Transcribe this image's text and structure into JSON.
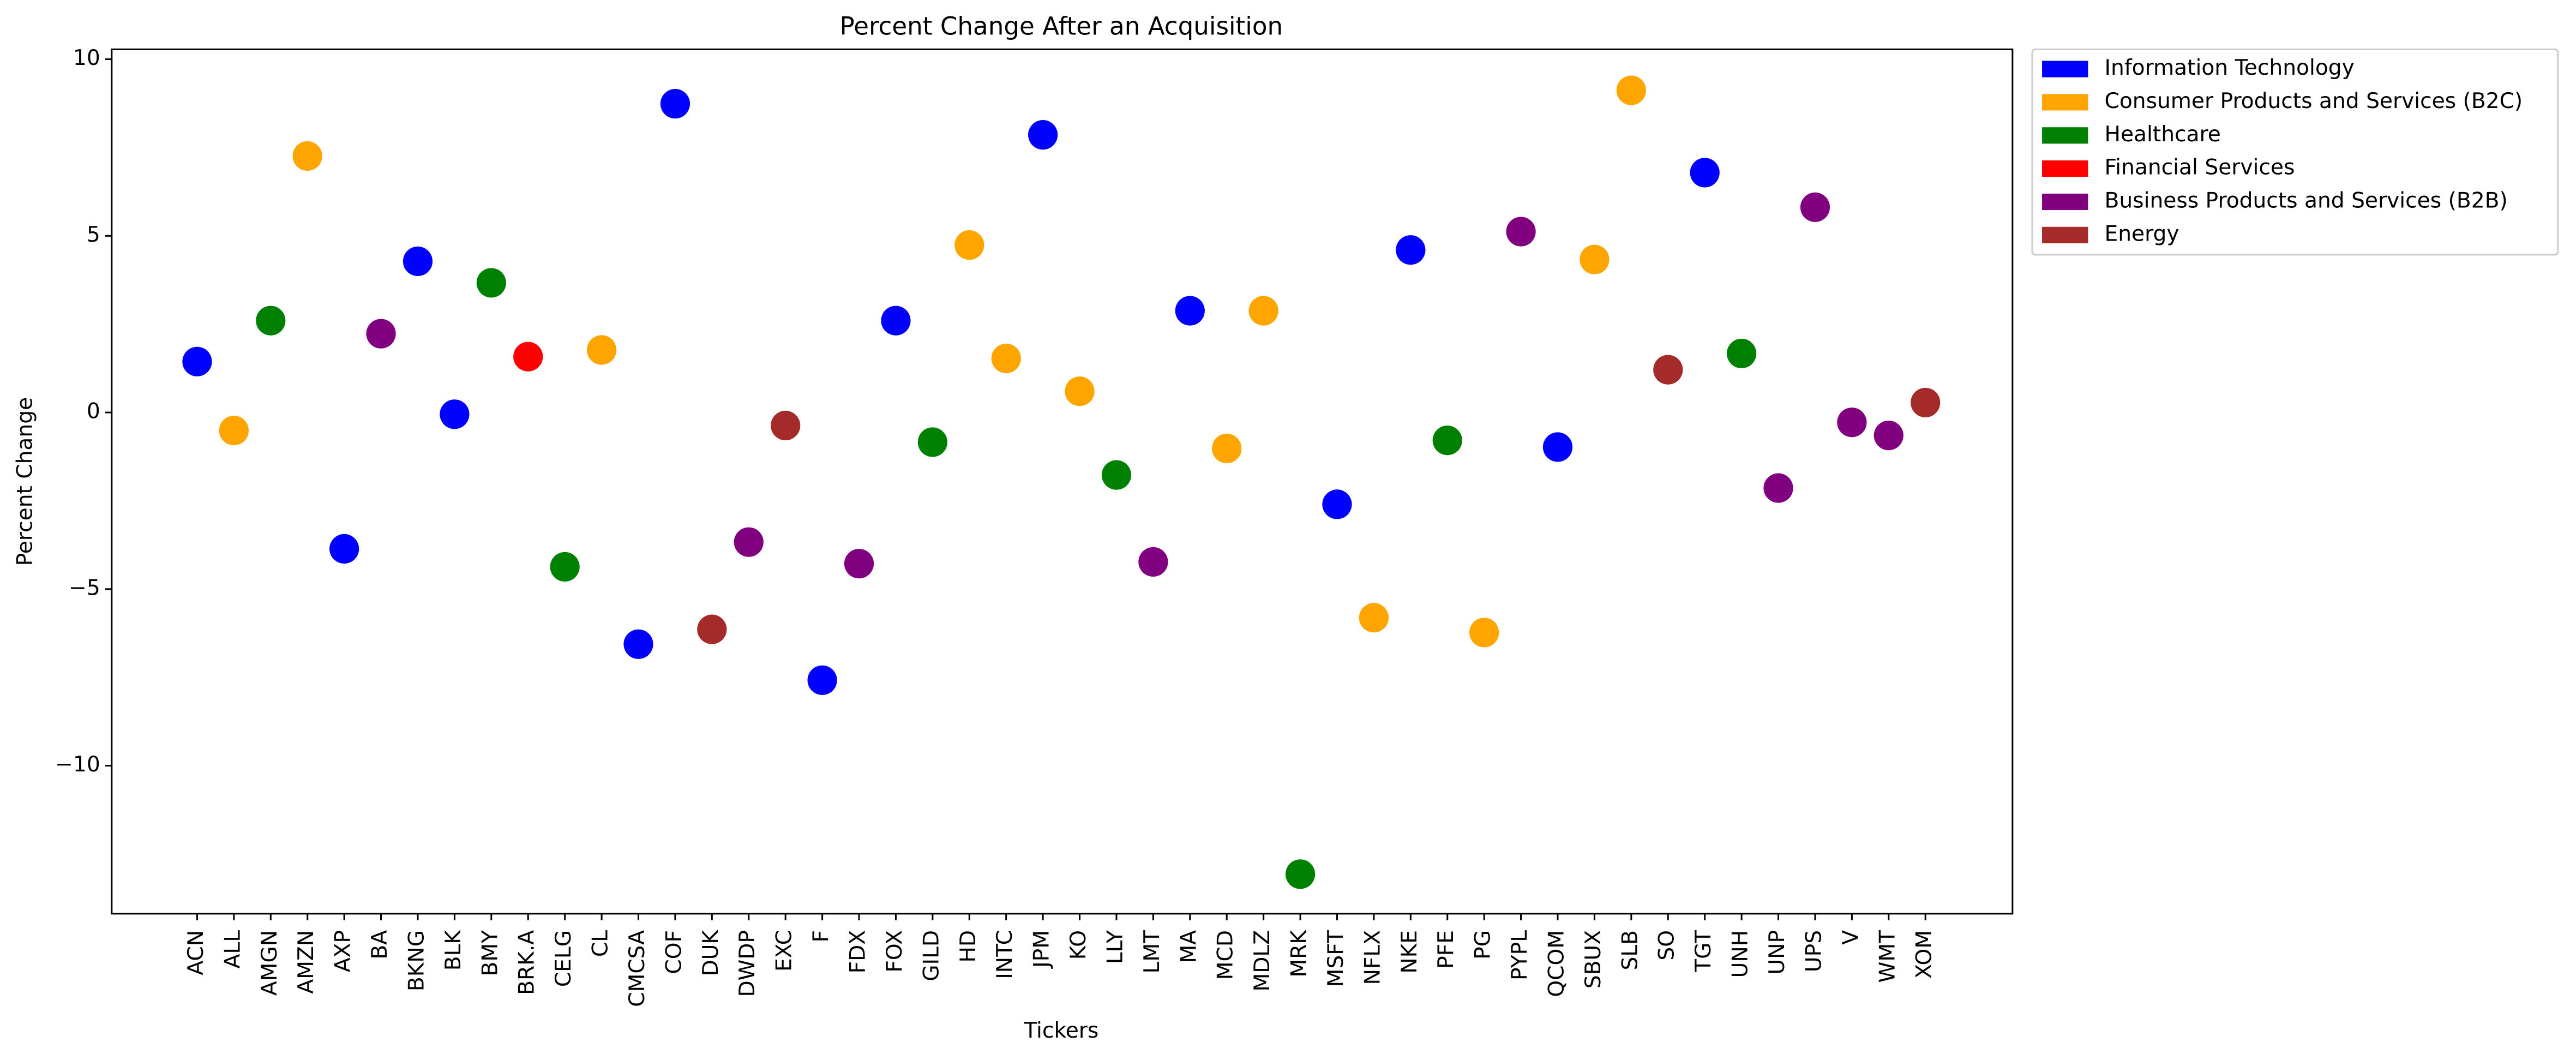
{
  "chart_data": {
    "type": "scatter",
    "title": "Percent Change After an Acquisition",
    "x_label": "Tickers",
    "y_label": "Percent Change",
    "categories": [
      "ACN",
      "ALL",
      "AMGN",
      "AMZN",
      "AXP",
      "BA",
      "BKNG",
      "BLK",
      "BMY",
      "BRK.A",
      "CELG",
      "CL",
      "CMCSA",
      "COF",
      "DUK",
      "DWDP",
      "EXC",
      "F",
      "FDX",
      "FOX",
      "GILD",
      "HD",
      "INTC",
      "JPM",
      "KO",
      "LLY",
      "LMT",
      "MA",
      "MCD",
      "MDLZ",
      "MRK",
      "MSFT",
      "NFLX",
      "NKE",
      "PFE",
      "PG",
      "PYPL",
      "QCOM",
      "SBUX",
      "SLB",
      "SO",
      "TGT",
      "UNH",
      "UNP",
      "UPS",
      "V",
      "WMT",
      "XOM"
    ],
    "series": [
      {
        "name": "Information Technology",
        "color": "#0000ff",
        "values": [
          1.44,
          null,
          null,
          null,
          -3.86,
          null,
          4.28,
          -0.05,
          null,
          null,
          null,
          null,
          -6.56,
          8.74,
          null,
          null,
          null,
          -7.58,
          null,
          2.6,
          null,
          null,
          null,
          7.86,
          null,
          null,
          null,
          2.88,
          null,
          null,
          null,
          -2.6,
          null,
          4.6,
          null,
          null,
          null,
          -0.98,
          null,
          null,
          null,
          6.79,
          null,
          null,
          null,
          null,
          null,
          null
        ]
      },
      {
        "name": "Consumer Products and Services (B2C)",
        "color": "#ffa500",
        "values": [
          null,
          -0.51,
          null,
          7.26,
          null,
          null,
          null,
          null,
          null,
          null,
          null,
          1.77,
          null,
          null,
          null,
          null,
          null,
          null,
          null,
          null,
          null,
          4.74,
          1.53,
          null,
          0.6,
          null,
          null,
          null,
          -1.02,
          2.88,
          null,
          null,
          -5.81,
          null,
          null,
          -6.23,
          null,
          null,
          4.33,
          9.12,
          null,
          null,
          null,
          null,
          null,
          null,
          null,
          null
        ]
      },
      {
        "name": "Healthcare",
        "color": "#008000",
        "values": [
          null,
          null,
          2.6,
          null,
          null,
          null,
          null,
          null,
          3.67,
          null,
          -4.37,
          null,
          null,
          null,
          null,
          null,
          null,
          null,
          null,
          null,
          -0.84,
          null,
          null,
          null,
          null,
          -1.77,
          null,
          null,
          null,
          null,
          -13.07,
          null,
          null,
          null,
          -0.79,
          null,
          null,
          null,
          null,
          null,
          null,
          null,
          1.67,
          null,
          null,
          null,
          null,
          null
        ]
      },
      {
        "name": "Financial Services",
        "color": "#ff0000",
        "values": [
          null,
          null,
          null,
          null,
          null,
          null,
          null,
          null,
          null,
          1.58,
          null,
          null,
          null,
          null,
          null,
          null,
          null,
          null,
          null,
          null,
          null,
          null,
          null,
          null,
          null,
          null,
          null,
          null,
          null,
          null,
          null,
          null,
          null,
          null,
          null,
          null,
          null,
          null,
          null,
          null,
          null,
          null,
          null,
          null,
          null,
          null,
          null,
          null
        ]
      },
      {
        "name": "Business Products and Services (B2B)",
        "color": "#800080",
        "values": [
          null,
          null,
          null,
          null,
          null,
          2.23,
          null,
          null,
          null,
          null,
          null,
          null,
          null,
          null,
          null,
          -3.67,
          null,
          null,
          -4.28,
          null,
          null,
          null,
          null,
          null,
          null,
          null,
          -4.23,
          null,
          null,
          null,
          null,
          null,
          null,
          null,
          null,
          null,
          5.12,
          null,
          null,
          null,
          null,
          null,
          null,
          -2.14,
          5.81,
          -0.28,
          -0.65,
          null
        ]
      },
      {
        "name": "Energy",
        "color": "#a52a2a",
        "values": [
          null,
          null,
          null,
          null,
          null,
          null,
          null,
          null,
          null,
          null,
          null,
          null,
          null,
          null,
          -6.14,
          null,
          -0.37,
          null,
          null,
          null,
          null,
          null,
          null,
          null,
          null,
          null,
          null,
          null,
          null,
          null,
          null,
          null,
          null,
          null,
          null,
          null,
          null,
          null,
          null,
          null,
          1.21,
          null,
          null,
          null,
          null,
          null,
          null,
          0.28
        ]
      }
    ],
    "ylim": [
      -14.19,
      10.28
    ],
    "yticks": [
      {
        "value": -10,
        "label": "−10"
      },
      {
        "value": -5,
        "label": "−5"
      },
      0,
      5,
      10
    ]
  }
}
